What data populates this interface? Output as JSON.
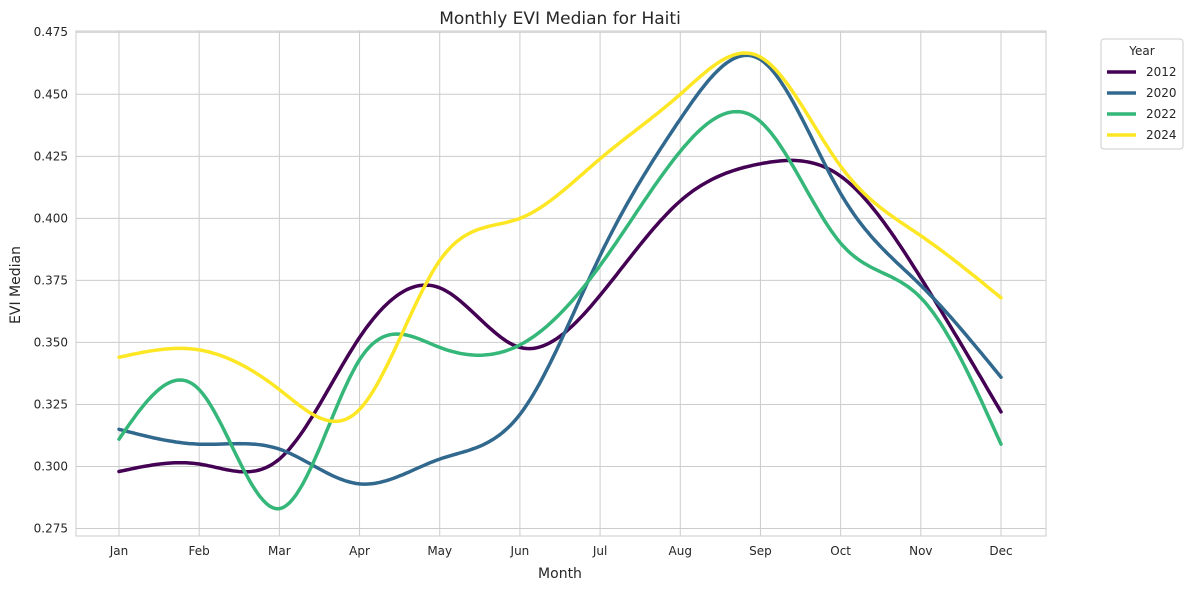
{
  "chart_data": {
    "type": "line",
    "title": "Monthly EVI Median for Haiti",
    "xlabel": "Month",
    "ylabel": "EVI Median",
    "categories": [
      "Jan",
      "Feb",
      "Mar",
      "Apr",
      "May",
      "Jun",
      "Jul",
      "Aug",
      "Sep",
      "Oct",
      "Nov",
      "Dec"
    ],
    "ylim": [
      0.272,
      0.4755
    ],
    "yticks": [
      0.275,
      0.3,
      0.325,
      0.35,
      0.375,
      0.4,
      0.425,
      0.45,
      0.475
    ],
    "ytick_labels": [
      "0.275",
      "0.300",
      "0.325",
      "0.350",
      "0.375",
      "0.400",
      "0.425",
      "0.450",
      "0.475"
    ],
    "grid": true,
    "legend": {
      "title": "Year",
      "position": "outside-top-right"
    },
    "series": [
      {
        "name": "2012",
        "color": "#440154",
        "values": [
          0.298,
          0.301,
          0.303,
          0.352,
          0.372,
          0.348,
          0.369,
          0.407,
          0.422,
          0.417,
          0.376,
          0.322
        ]
      },
      {
        "name": "2020",
        "color": "#31688e",
        "values": [
          0.315,
          0.309,
          0.307,
          0.293,
          0.303,
          0.321,
          0.385,
          0.44,
          0.464,
          0.41,
          0.373,
          0.336
        ]
      },
      {
        "name": "2022",
        "color": "#35b779",
        "values": [
          0.311,
          0.331,
          0.283,
          0.343,
          0.348,
          0.349,
          0.381,
          0.427,
          0.439,
          0.39,
          0.368,
          0.309
        ]
      },
      {
        "name": "2024",
        "color": "#fde725",
        "values": [
          0.344,
          0.347,
          0.331,
          0.323,
          0.383,
          0.4,
          0.424,
          0.45,
          0.465,
          0.421,
          0.393,
          0.368
        ]
      }
    ]
  }
}
